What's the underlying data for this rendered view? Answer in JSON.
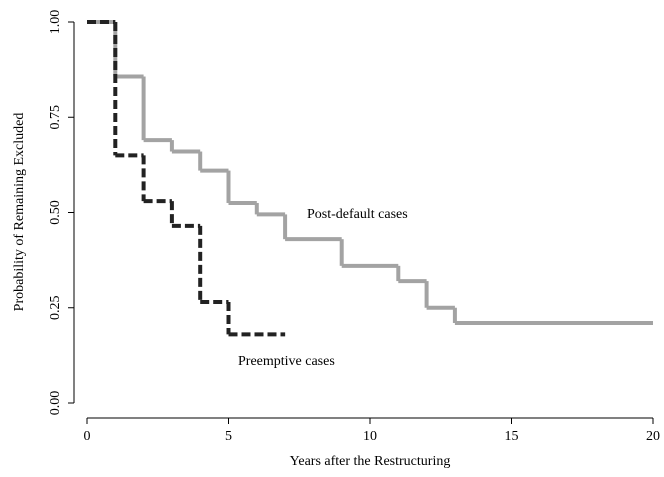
{
  "chart_data": {
    "type": "step",
    "xlabel": "Years after the Restructuring",
    "ylabel": "Probability of Remaining Excluded",
    "xlim": [
      0,
      20
    ],
    "xticks": [
      0,
      5,
      10,
      15,
      20
    ],
    "ylim": [
      0,
      1
    ],
    "yticks": [
      {
        "value": 0,
        "label": "0.00"
      },
      {
        "value": 0.25,
        "label": "0.25"
      },
      {
        "value": 0.5,
        "label": "0.50"
      },
      {
        "value": 0.75,
        "label": "0.75"
      },
      {
        "value": 1,
        "label": "1.00"
      }
    ],
    "series": [
      {
        "name": "Post-default cases",
        "color": "#a3a3a3",
        "dash": false,
        "x": [
          0,
          1,
          2,
          3,
          4,
          5,
          6,
          7,
          9,
          11,
          12,
          13,
          20
        ],
        "values": [
          1.0,
          0.857,
          0.69,
          0.66,
          0.61,
          0.525,
          0.495,
          0.43,
          0.36,
          0.32,
          0.25,
          0.21,
          0.21
        ]
      },
      {
        "name": "Preemptive cases",
        "color": "#222222",
        "dash": true,
        "x": [
          0,
          1,
          2,
          3,
          4,
          5,
          7
        ],
        "values": [
          1.0,
          0.65,
          0.53,
          0.465,
          0.265,
          0.18,
          0.18
        ]
      }
    ]
  }
}
